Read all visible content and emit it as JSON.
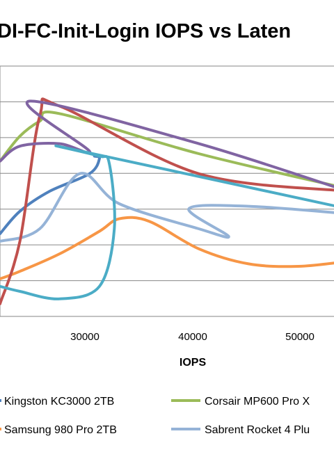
{
  "chart_data": {
    "type": "line",
    "title": "DI-FC-Init-Login IOPS vs Laten",
    "xlabel": "IOPS",
    "ylabel": "",
    "x_ticks": [
      "30000",
      "40000",
      "50000"
    ],
    "x_range": [
      20000,
      55000
    ],
    "y_range": [
      0,
      1
    ],
    "grid": true,
    "legend_position": "bottom",
    "legend": [
      "Kingston KC3000 2TB",
      "Corsair MP600 Pro X",
      "Samsung 980 Pro 2TB",
      "Sabrent Rocket 4 Plu"
    ],
    "series": [
      {
        "name": "Kingston KC3000 2TB",
        "color": "#4f81bd",
        "x": [
          20000,
          22000,
          25000,
          29000,
          30000,
          29500
        ],
        "y": [
          0.33,
          0.42,
          0.5,
          0.57,
          0.63,
          0.64
        ]
      },
      {
        "name": "Samsung 980 Pro 2TB",
        "color": "#f79646",
        "x": [
          20000,
          22000,
          26000,
          30000,
          32000,
          35000,
          40000,
          45000,
          50000,
          55000
        ],
        "y": [
          0.15,
          0.18,
          0.25,
          0.34,
          0.39,
          0.38,
          0.27,
          0.21,
          0.2,
          0.22
        ]
      },
      {
        "name": "Corsair MP600 Pro X",
        "color": "#9bbb59",
        "x": [
          20000,
          22000,
          24000,
          26000,
          40000,
          55000
        ],
        "y": [
          0.62,
          0.72,
          0.78,
          0.81,
          0.65,
          0.51
        ]
      },
      {
        "name": "Sabrent Rocket 4 Plu",
        "color": "#95b3d7",
        "x": [
          20000,
          24000,
          28000,
          32000,
          40000,
          43000,
          39000,
          45000,
          55000
        ],
        "y": [
          0.3,
          0.35,
          0.57,
          0.45,
          0.35,
          0.32,
          0.43,
          0.44,
          0.41
        ]
      },
      {
        "name": "",
        "color": "#c0504d",
        "x": [
          20000,
          22000,
          24000,
          26000,
          40000,
          55000
        ],
        "y": [
          0.05,
          0.3,
          0.8,
          0.84,
          0.57,
          0.5
        ]
      },
      {
        "name": "",
        "color": "#8064a2",
        "x": [
          20000,
          22000,
          26000,
          29000,
          23000,
          40000,
          55000
        ],
        "y": [
          0.62,
          0.68,
          0.69,
          0.66,
          0.86,
          0.69,
          0.5
        ]
      },
      {
        "name": "",
        "color": "#4bacc6",
        "x": [
          20000,
          22000,
          26000,
          30000,
          31500,
          31000,
          30000,
          27000,
          55000
        ],
        "y": [
          0.12,
          0.1,
          0.07,
          0.12,
          0.35,
          0.61,
          0.64,
          0.67,
          0.43
        ]
      }
    ]
  }
}
